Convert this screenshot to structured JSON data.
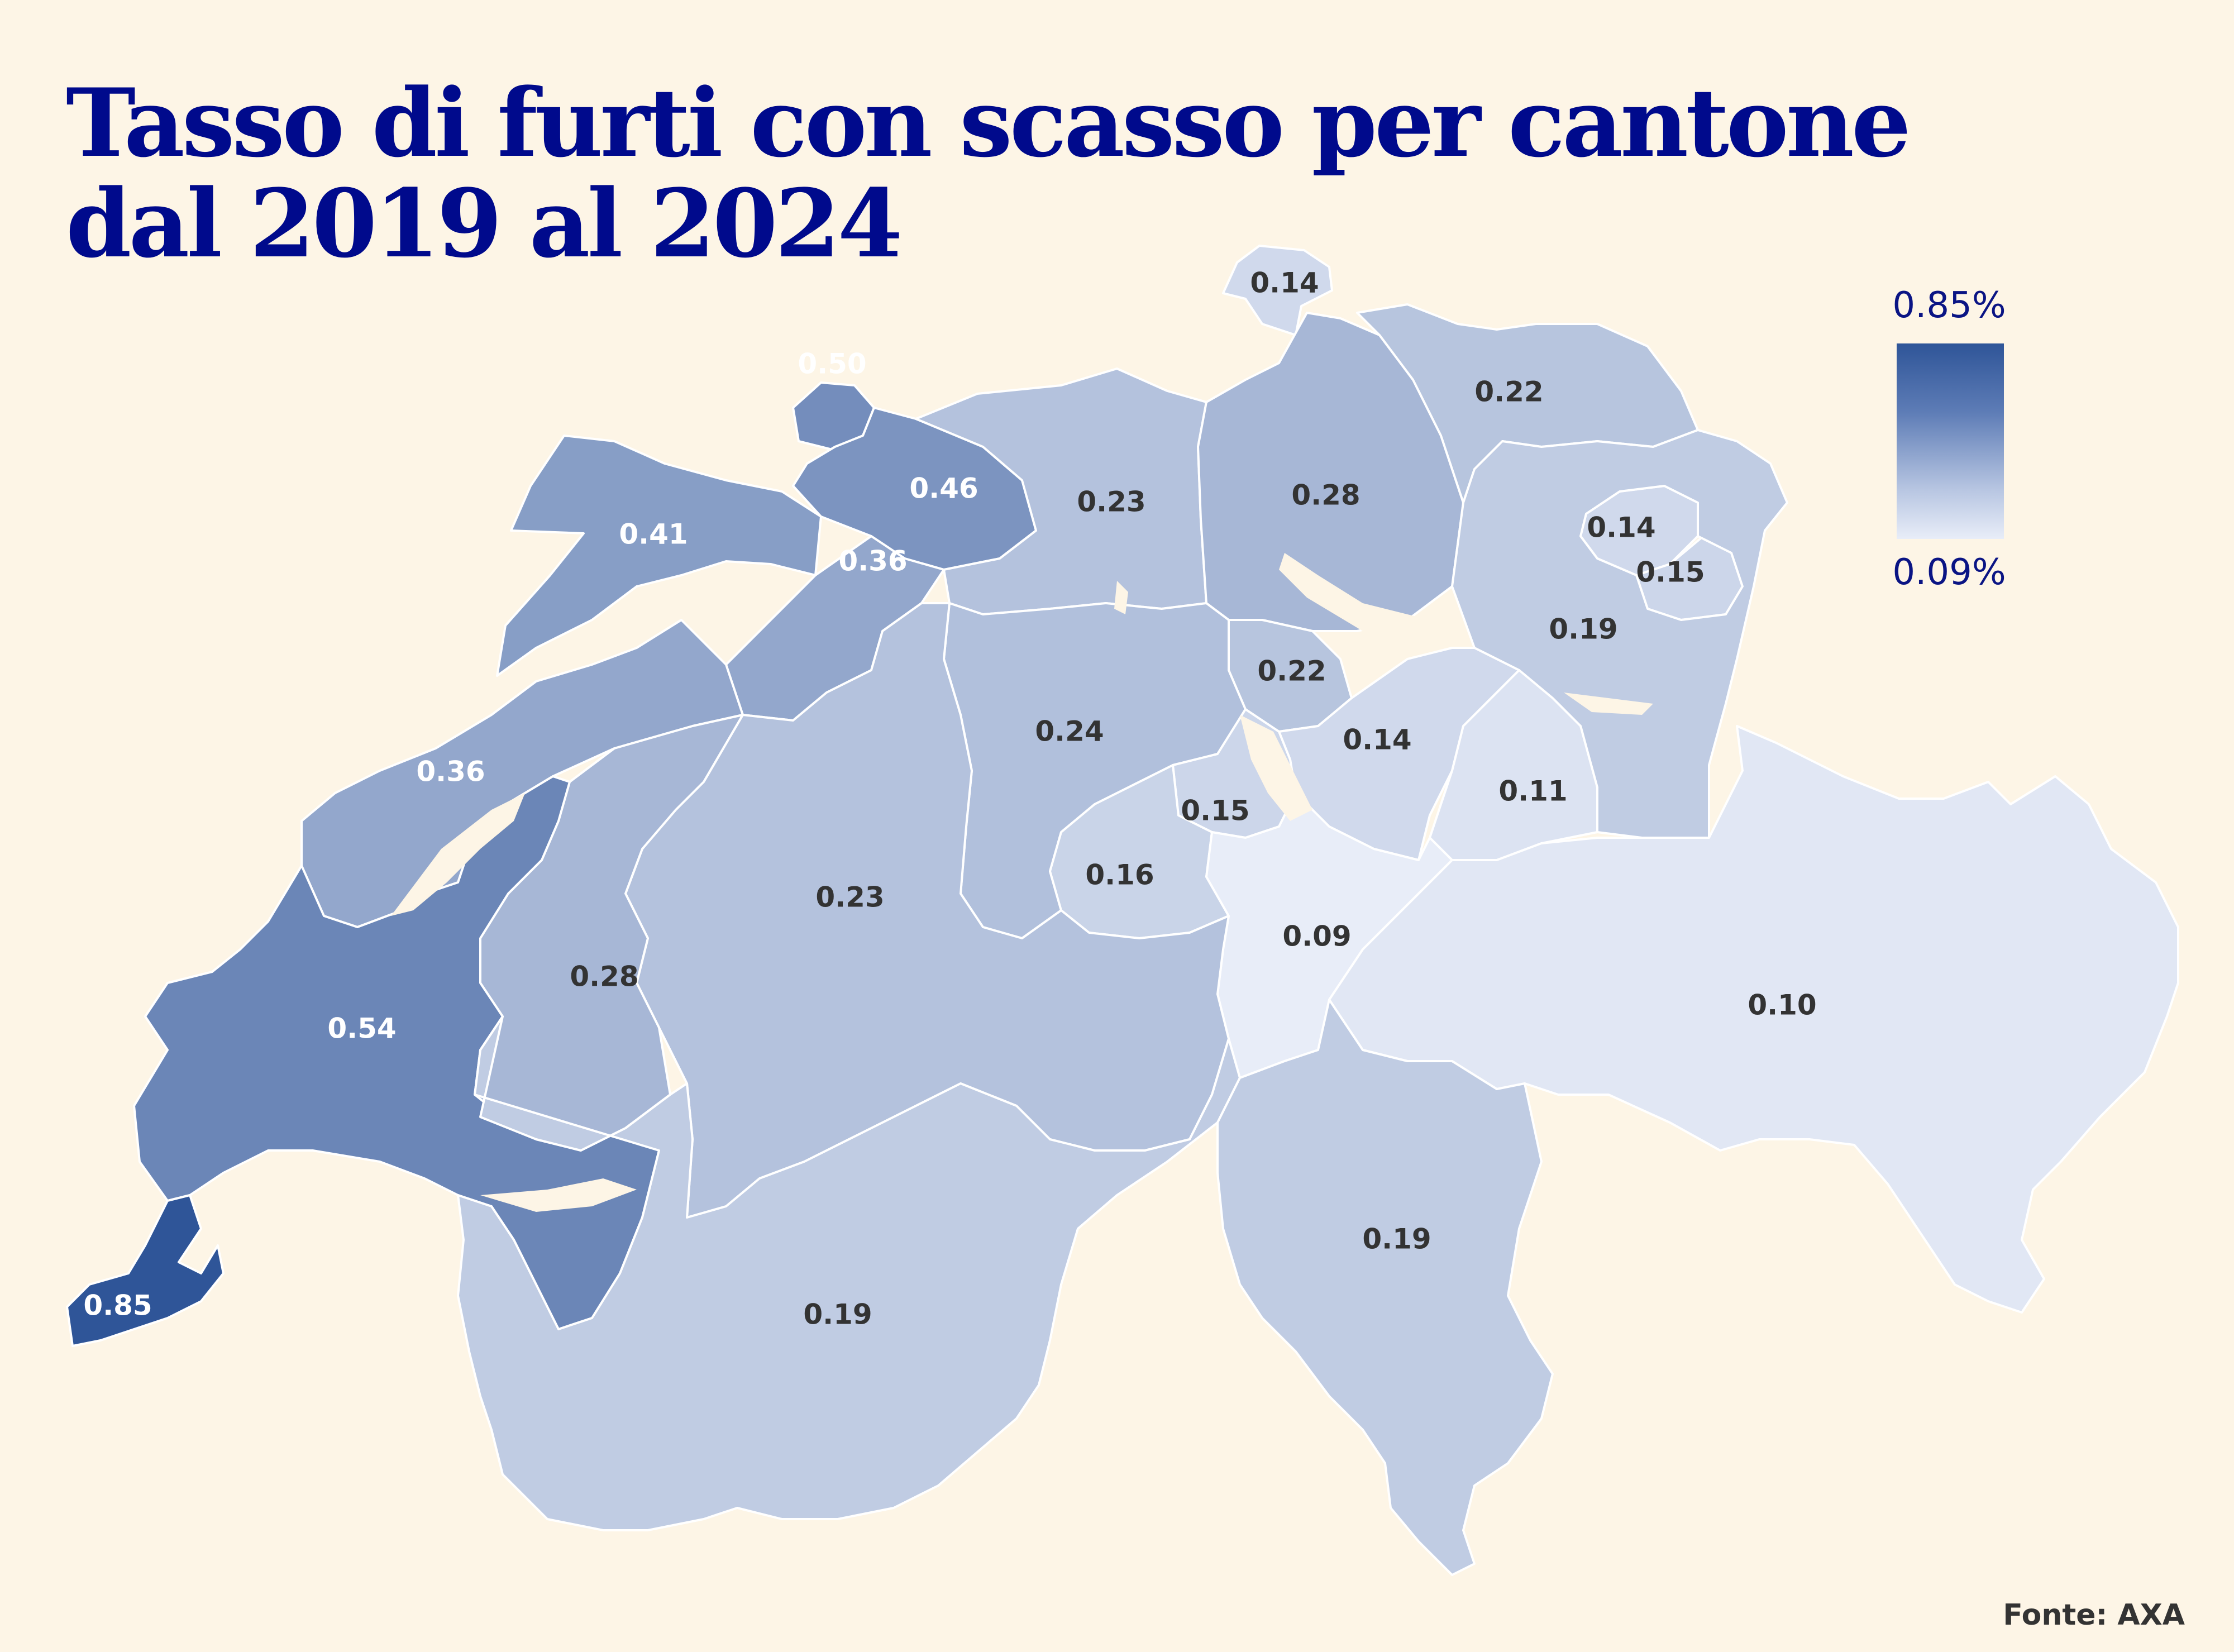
{
  "title_lines": [
    "Tasso di furti con scasso per cantone",
    "dal 2019 al 2024"
  ],
  "legend": {
    "max_label": "0.85%",
    "min_label": "0.09%",
    "max_value": 0.85,
    "min_value": 0.09,
    "color_max": "#2f5598",
    "color_min": "#e8edf8"
  },
  "source": "Fonte: AXA",
  "colors": {
    "background": "#fdf5e6",
    "title": "#000a8c",
    "border": "#ffffff",
    "label_dark": "#333333",
    "label_light": "#ffffff"
  },
  "regions": [
    {
      "name": "Schaffhausen",
      "value": 0.14,
      "label": "0.14"
    },
    {
      "name": "Basel-Stadt",
      "value": 0.5,
      "label": "0.50"
    },
    {
      "name": "Basel-Landschaft",
      "value": 0.46,
      "label": "0.46"
    },
    {
      "name": "Jura",
      "value": 0.41,
      "label": "0.41"
    },
    {
      "name": "Solothurn",
      "value": 0.36,
      "label": "0.36"
    },
    {
      "name": "Aargau",
      "value": 0.23,
      "label": "0.23"
    },
    {
      "name": "Zürich",
      "value": 0.28,
      "label": "0.28"
    },
    {
      "name": "Thurgau",
      "value": 0.22,
      "label": "0.22"
    },
    {
      "name": "Appenzell Ausserrhoden",
      "value": 0.14,
      "label": "0.14"
    },
    {
      "name": "Appenzell Innerrhoden",
      "value": 0.15,
      "label": "0.15"
    },
    {
      "name": "St. Gallen",
      "value": 0.19,
      "label": "0.19"
    },
    {
      "name": "Zug",
      "value": 0.22,
      "label": "0.22"
    },
    {
      "name": "Luzern",
      "value": 0.24,
      "label": "0.24"
    },
    {
      "name": "Schwyz",
      "value": 0.14,
      "label": "0.14"
    },
    {
      "name": "Glarus",
      "value": 0.11,
      "label": "0.11"
    },
    {
      "name": "Nidwalden",
      "value": 0.15,
      "label": "0.15"
    },
    {
      "name": "Obwalden",
      "value": 0.16,
      "label": "0.16"
    },
    {
      "name": "Uri",
      "value": 0.09,
      "label": "0.09"
    },
    {
      "name": "Neuchâtel",
      "value": 0.36,
      "label": "0.36"
    },
    {
      "name": "Bern",
      "value": 0.23,
      "label": "0.23"
    },
    {
      "name": "Fribourg",
      "value": 0.28,
      "label": "0.28"
    },
    {
      "name": "Vaud",
      "value": 0.54,
      "label": "0.54"
    },
    {
      "name": "Genève",
      "value": 0.85,
      "label": "0.85"
    },
    {
      "name": "Graubünden",
      "value": 0.1,
      "label": "0.10"
    },
    {
      "name": "Valais",
      "value": 0.19,
      "label": "0.19"
    },
    {
      "name": "Ticino",
      "value": 0.19,
      "label": "0.19"
    }
  ]
}
